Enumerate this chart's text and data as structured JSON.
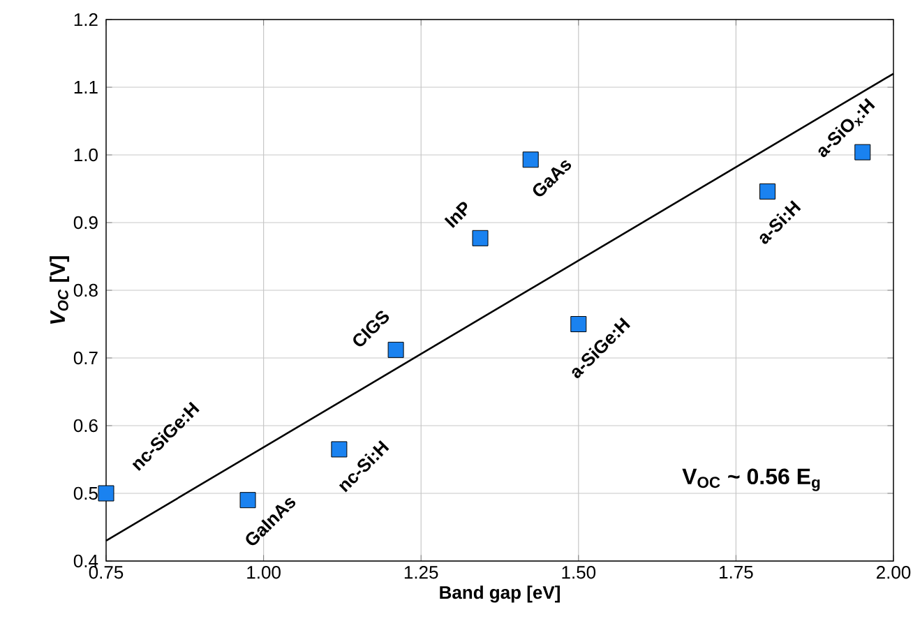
{
  "chart_data": {
    "type": "scatter",
    "xlabel": "Band gap [eV]",
    "ylabel": "*V$_{OC}$* [V]",
    "xlim": [
      0.75,
      2.0
    ],
    "ylim": [
      0.4,
      1.2
    ],
    "xticks": [
      {
        "value": 0.75,
        "label": "0.75"
      },
      {
        "value": 1.0,
        "label": "1.00"
      },
      {
        "value": 1.25,
        "label": "1.25"
      },
      {
        "value": 1.5,
        "label": "1.50"
      },
      {
        "value": 1.75,
        "label": "1.75"
      },
      {
        "value": 2.0,
        "label": "2.00"
      }
    ],
    "yticks": [
      {
        "value": 0.4,
        "label": "0.4"
      },
      {
        "value": 0.5,
        "label": "0.5"
      },
      {
        "value": 0.6,
        "label": "0.6"
      },
      {
        "value": 0.7,
        "label": "0.7"
      },
      {
        "value": 0.8,
        "label": "0.8"
      },
      {
        "value": 0.9,
        "label": "0.9"
      },
      {
        "value": 1.0,
        "label": "1.0"
      },
      {
        "value": 1.1,
        "label": "1.1"
      },
      {
        "value": 1.2,
        "label": "1.2"
      }
    ],
    "grid": true,
    "marker": "square",
    "series": [
      {
        "color": "#1a82f0",
        "x": [
          0.75,
          0.975,
          1.12,
          1.21,
          1.344,
          1.424,
          1.5,
          1.8,
          1.951
        ],
        "values": [
          0.5,
          0.49,
          0.565,
          0.712,
          0.877,
          0.993,
          0.75,
          0.946,
          1.004
        ]
      },
      {
        "type": "line",
        "color": "#000000",
        "marker": "none",
        "x": [
          0.75,
          2.0
        ],
        "values": [
          0.43,
          1.12
        ]
      }
    ],
    "annotations": [
      {
        "text": "nc-SiGe:H",
        "x": 0.75,
        "y": 0.5
      },
      {
        "text": "GaInAs",
        "x": 0.975,
        "y": 0.49
      },
      {
        "text": "nc-Si:H",
        "x": 1.12,
        "y": 0.565
      },
      {
        "text": "CIGS",
        "x": 1.21,
        "y": 0.712
      },
      {
        "text": "InP",
        "x": 1.344,
        "y": 0.877
      },
      {
        "text": "GaAs",
        "x": 1.424,
        "y": 0.993
      },
      {
        "text": "a-SiGe:H",
        "x": 1.5,
        "y": 0.75
      },
      {
        "text": "a-Si:H",
        "x": 1.8,
        "y": 0.946
      },
      {
        "text": "a-SiO$_{x}$:H",
        "x": 1.951,
        "y": 1.004
      },
      "V$_{OC}$ ~ 0.56 E$_{g}$"
    ]
  }
}
